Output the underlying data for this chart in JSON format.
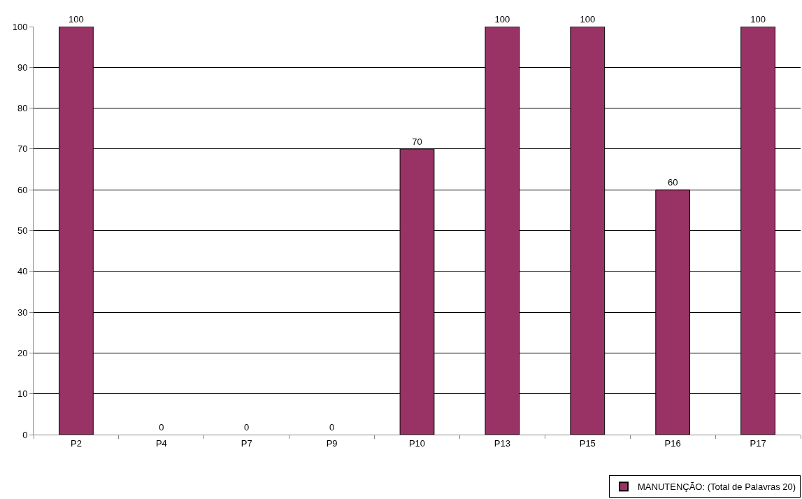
{
  "chart_data": {
    "type": "bar",
    "categories": [
      "P2",
      "P4",
      "P7",
      "P9",
      "P10",
      "P13",
      "P15",
      "P16",
      "P17"
    ],
    "series": [
      {
        "name": "MANUTENÇÃO: (Total de Palavras 20)",
        "color": "#993366",
        "values": [
          100,
          0,
          0,
          0,
          70,
          100,
          100,
          60,
          100
        ]
      }
    ],
    "ylim": [
      0,
      100
    ],
    "yticks": [
      0,
      10,
      20,
      30,
      40,
      50,
      60,
      70,
      80,
      90,
      100
    ],
    "grid": "y",
    "legend": "bottom right",
    "data_labels": true
  }
}
